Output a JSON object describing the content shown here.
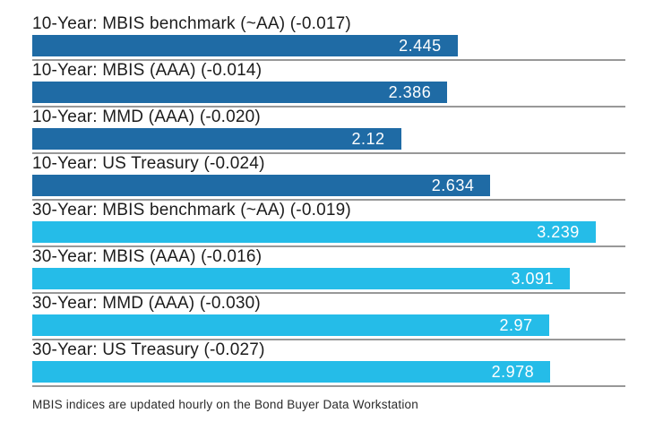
{
  "chart_data": {
    "type": "bar",
    "orientation": "horizontal",
    "title": "",
    "xlabel": "",
    "ylabel": "",
    "xlim": [
      0,
      3.41
    ],
    "grid": false,
    "legend": "none",
    "colors": {
      "10-year": "#1f6ba5",
      "30-year": "#25bce8"
    },
    "rule_color": "#989898",
    "rows": [
      {
        "label": "10-Year: MBIS benchmark (~AA) (-0.017)",
        "value": 2.445,
        "value_label": "2.445",
        "group": "10-year",
        "change": -0.017
      },
      {
        "label": "10-Year: MBIS (AAA) (-0.014)",
        "value": 2.386,
        "value_label": "2.386",
        "group": "10-year",
        "change": -0.014
      },
      {
        "label": "10-Year: MMD (AAA) (-0.020)",
        "value": 2.12,
        "value_label": "2.12",
        "group": "10-year",
        "change": -0.02
      },
      {
        "label": "10-Year: US Treasury (-0.024)",
        "value": 2.634,
        "value_label": "2.634",
        "group": "10-year",
        "change": -0.024
      },
      {
        "label": "30-Year: MBIS benchmark (~AA) (-0.019)",
        "value": 3.239,
        "value_label": "3.239",
        "group": "30-year",
        "change": -0.019
      },
      {
        "label": "30-Year: MBIS (AAA) (-0.016)",
        "value": 3.091,
        "value_label": "3.091",
        "group": "30-year",
        "change": -0.016
      },
      {
        "label": "30-Year: MMD (AAA) (-0.030)",
        "value": 2.97,
        "value_label": "2.97",
        "group": "30-year",
        "change": -0.03
      },
      {
        "label": "30-Year: US Treasury (-0.027)",
        "value": 2.978,
        "value_label": "2.978",
        "group": "30-year",
        "change": -0.027
      }
    ],
    "footnote": "MBIS indices are updated hourly on the Bond Buyer Data Workstation"
  }
}
